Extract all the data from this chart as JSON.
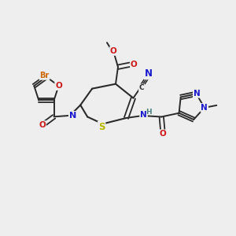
{
  "background_color": "#eeeeee",
  "bond_color": "#2a2a2a",
  "atom_colors": {
    "C": "#2a2a2a",
    "N": "#1a1acc",
    "O": "#cc1a1a",
    "S": "#b8b800",
    "Br": "#cc6600",
    "H": "#4a8080"
  },
  "figsize": [
    3.0,
    3.0
  ],
  "dpi": 100,
  "fs": 7.0
}
